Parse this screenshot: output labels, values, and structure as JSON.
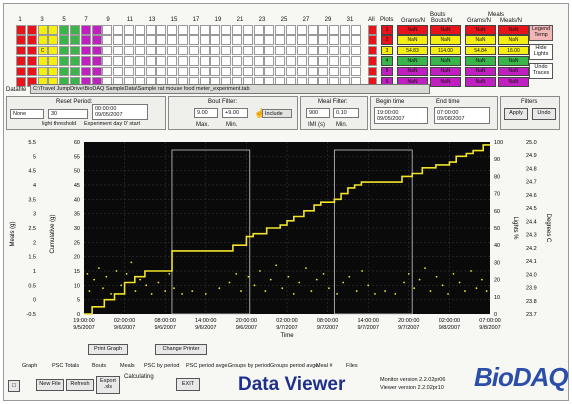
{
  "channels": {
    "numbers": [
      "1",
      "3",
      "5",
      "7",
      "9",
      "11",
      "13",
      "15",
      "17",
      "19",
      "21",
      "23",
      "25",
      "27",
      "29",
      "31"
    ],
    "all_label": "All",
    "plots_label": "Plots",
    "selected_cell_label": "C"
  },
  "right_table": {
    "header_bouts": "Bouts",
    "header_meals": "Meals",
    "col1": "Grams/N",
    "col2": "Bouts/N",
    "col3": "Grams/N",
    "col4": "Meals/N",
    "rows": [
      {
        "c1": "NaN",
        "c2": "NaN",
        "c3": "NaN",
        "c4": "NaN"
      },
      {
        "c1": "NaN",
        "c2": "NaN",
        "c3": "NaN",
        "c4": "NaN"
      },
      {
        "c1": "54.83",
        "c2": "114.00",
        "c3": "54.84",
        "c4": "16.00"
      },
      {
        "c1": "NaN",
        "c2": "NaN",
        "c3": "NaN",
        "c4": "NaN"
      },
      {
        "c1": "NaN",
        "c2": "NaN",
        "c3": "NaN",
        "c4": "NaN"
      },
      {
        "c1": "NaN",
        "c2": "NaN",
        "c3": "NaN",
        "c4": "NaN"
      }
    ],
    "plot_indexes": [
      "1",
      "2",
      "3",
      "4",
      "5",
      "6"
    ],
    "side_buttons": [
      "Legend Temp",
      "Hide Lights",
      "Undo Traces"
    ]
  },
  "datafile": {
    "label": "Datafile",
    "path": "C:\\Travel JumpDrive\\BioDAQ SampleData\\Sample rat mouse food meter_experiment.tab"
  },
  "reset_period": {
    "title": "Reset Period:",
    "none_value": "None",
    "value": "30",
    "time": "00:00:00",
    "date": "09/05/2007",
    "light_threshold_label": "light threshold",
    "experiment_day_label": "Experiment day 0' start"
  },
  "bout_filter": {
    "title": "Bout Filter:",
    "max_value": "9.00",
    "min_value": "+9.00",
    "max_label": "Max.",
    "min_label": "Min.",
    "include_label": "Include"
  },
  "meal_filter": {
    "title": "Meal Filter:",
    "value1": "900",
    "value2": "0.10",
    "label1": "IMI (s)",
    "label2": "Min."
  },
  "times": {
    "begin_label": "Begin time",
    "end_label": "End time",
    "begin_time": "19:00:00",
    "begin_date": "09/05/2007",
    "end_time": "07:00:00",
    "end_date": "09/08/2007"
  },
  "filters": {
    "title": "Filters",
    "apply_label": "Apply",
    "undo_label": "Undo"
  },
  "chart_data": {
    "type": "line",
    "ylabel_left": "Meals (g)",
    "ylabel_left2": "Cumulative (g)",
    "ylabel_right": "Lights %",
    "ylabel_right2": "Degrees C",
    "xlabel": "Time",
    "y_meals_ticks": [
      "5.5",
      "5",
      "4.5",
      "4",
      "3.5",
      "3",
      "2.5",
      "2",
      "1.5",
      "1",
      "0.5",
      "0",
      "-0.5"
    ],
    "y_cum_ticks": [
      "60",
      "55",
      "50",
      "45",
      "40",
      "35",
      "30",
      "25",
      "20",
      "15",
      "10",
      "5",
      "0"
    ],
    "y_light_ticks": [
      "100",
      "90",
      "80",
      "70",
      "60",
      "50",
      "40",
      "30",
      "20",
      "10",
      "0"
    ],
    "y_temp_ticks": [
      "25.0",
      "24.9",
      "24.8",
      "24.7",
      "24.6",
      "24.5",
      "24.4",
      "24.3",
      "24.2",
      "24.1",
      "24.0",
      "23.9",
      "23.8",
      "23.7"
    ],
    "ylim_cumulative": [
      0,
      60
    ],
    "x_ticks": [
      {
        "t": "19:00:00",
        "d": "9/5/2007"
      },
      {
        "t": "02:00:00",
        "d": "9/6/2007"
      },
      {
        "t": "08:00:00",
        "d": "9/6/2007"
      },
      {
        "t": "14:00:00",
        "d": "9/6/2007"
      },
      {
        "t": "20:00:00",
        "d": "9/6/2007"
      },
      {
        "t": "02:00:00",
        "d": "9/7/2007"
      },
      {
        "t": "08:00:00",
        "d": "9/7/2007"
      },
      {
        "t": "14:00:00",
        "d": "9/7/2007"
      },
      {
        "t": "20:00:00",
        "d": "9/7/2007"
      },
      {
        "t": "02:00:00",
        "d": "9/8/2007"
      },
      {
        "t": "07:00:00",
        "d": "9/8/2007"
      }
    ],
    "xlim_hours": [
      0,
      60
    ],
    "cumulative": {
      "x": [
        0,
        1.2,
        1.2,
        3,
        3,
        4.5,
        4.5,
        6,
        6,
        7.5,
        7.5,
        9,
        9,
        13,
        13,
        22,
        22,
        24,
        24,
        25,
        25,
        27,
        27,
        29,
        29,
        30,
        30,
        31,
        31,
        32.5,
        32.5,
        34,
        34,
        35,
        35,
        37,
        37,
        38,
        38,
        39,
        39,
        40,
        40,
        41,
        41,
        47,
        47,
        48.5,
        48.5,
        50,
        50,
        52,
        52,
        54,
        54,
        55,
        55,
        56.5,
        56.5,
        57.5,
        57.5,
        59,
        59,
        60
      ],
      "y": [
        0,
        0,
        2.5,
        2.5,
        5,
        5,
        7,
        7,
        11,
        11,
        13,
        13,
        15,
        15,
        22,
        22,
        24,
        24,
        27,
        27,
        28,
        28,
        30,
        30,
        31,
        31,
        32.5,
        32.5,
        34,
        34,
        36,
        36,
        38,
        38,
        39,
        39,
        40,
        40,
        42,
        42,
        44,
        44,
        45,
        45,
        46,
        46,
        48,
        48,
        49,
        49,
        51,
        51,
        52,
        52,
        53,
        53,
        55,
        55,
        56,
        56,
        57,
        57,
        59,
        59
      ]
    },
    "light_periods": [
      {
        "start": 13,
        "end": 24.5
      },
      {
        "start": 37,
        "end": 48.5
      }
    ],
    "meal_points": {
      "x": [
        0.5,
        0.8,
        1.5,
        2.2,
        2.8,
        3.3,
        4,
        4.8,
        5.5,
        6.3,
        7,
        7.6,
        8.3,
        9.2,
        10,
        11,
        12,
        12.6,
        13.3,
        14.5,
        16,
        18,
        20,
        21.5,
        22.5,
        23.2,
        24.3,
        25.2,
        26,
        26.8,
        27.6,
        28.4,
        29.3,
        30.2,
        31,
        31.8,
        32.8,
        33.6,
        34.4,
        35.4,
        36.2,
        37.4,
        38.3,
        39.2,
        40.3,
        41.1,
        42,
        43,
        44.5,
        46,
        47.3,
        48,
        48.8,
        49.6,
        50.4,
        51.2,
        52.1,
        53,
        53.8,
        54.6,
        55.5,
        56.3,
        57.2,
        58,
        58.8,
        59.5
      ],
      "y": [
        0.9,
        0.3,
        0.7,
        1.1,
        0.4,
        0.8,
        0.2,
        1.0,
        0.5,
        0.9,
        1.3,
        0.3,
        0.7,
        0.5,
        0.2,
        0.6,
        0.3,
        0.9,
        0.4,
        0.2,
        0.3,
        0.2,
        0.4,
        0.6,
        0.9,
        0.3,
        0.8,
        0.5,
        1.0,
        0.3,
        0.7,
        1.2,
        0.4,
        0.8,
        0.2,
        0.6,
        1.1,
        0.3,
        0.7,
        0.9,
        0.4,
        0.2,
        0.6,
        0.8,
        0.3,
        1.0,
        0.5,
        0.2,
        0.3,
        0.2,
        0.6,
        0.9,
        0.4,
        0.7,
        1.1,
        0.3,
        0.8,
        0.5,
        0.2,
        0.9,
        0.6,
        0.3,
        1.0,
        0.4,
        0.7,
        0.3
      ]
    },
    "meal_ylim": [
      -0.5,
      5.5
    ]
  },
  "bottom": {
    "print_graph": "Print Graph",
    "change_printer": "Change Printer",
    "tabs": [
      "Graph",
      "PSC Totals",
      "Bouts",
      "Meals",
      "PSC by period",
      "PSC period avge.",
      "Groups by period",
      "Groups period avge.",
      "Meal #",
      "Files"
    ],
    "new_file": "New File",
    "refresh": "Refresh",
    "export": "Export .xls",
    "calculating": "Calculating",
    "exit": "EXIT",
    "title": "Data Viewer",
    "monitor_version": "Monitor version 2.2.02pr06",
    "viewer_version": "Viewer version 2.2.02pr10",
    "logo": "BioDAQ"
  },
  "colors": {
    "red": "#e8141c",
    "yellow": "#f5ee12",
    "green": "#39b54a",
    "magenta": "#c020c0",
    "plot_bg": "#0a0a0a",
    "trace": "#f0e32a",
    "panel_gray": "#8a8a8a"
  }
}
